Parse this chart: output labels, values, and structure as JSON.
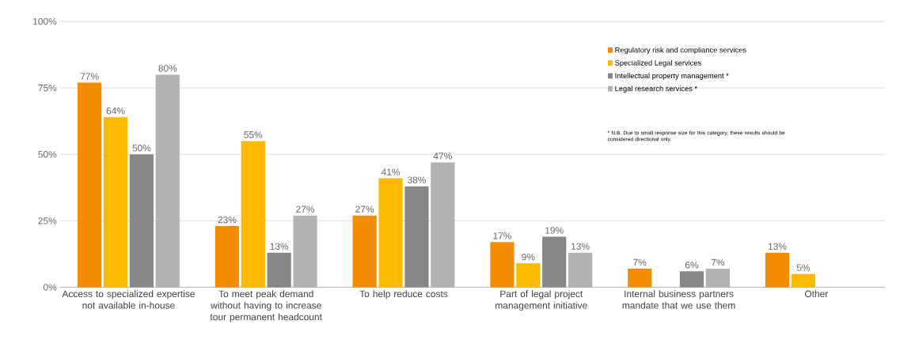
{
  "chart_data": {
    "type": "bar",
    "categories": [
      "Access to specialized expertise not available in-house",
      "To meet peak demand without having to increase tour permanent headcount",
      "To help reduce costs",
      "Part of legal project management initiative",
      "Internal business partners mandate that we use them",
      "Other"
    ],
    "series": [
      {
        "name": "Regulatory risk and compliance services",
        "color": "#f28c00",
        "values": [
          77,
          23,
          27,
          17,
          7,
          13
        ],
        "value_labels": [
          "77%",
          "23%",
          "27%",
          "17%",
          "7%",
          "13%"
        ]
      },
      {
        "name": "Specialized Legal services",
        "color": "#fbb900",
        "values": [
          64,
          55,
          41,
          9,
          null,
          5
        ],
        "value_labels": [
          "64%",
          "55%",
          "41%",
          "9%",
          null,
          "5%"
        ]
      },
      {
        "name": "Intellectual property management *",
        "color": "#878787",
        "values": [
          50,
          13,
          38,
          19,
          6,
          null
        ],
        "value_labels": [
          "50%",
          "13%",
          "38%",
          "19%",
          "6%",
          null
        ]
      },
      {
        "name": "Legal research services *",
        "color": "#b2b2b2",
        "values": [
          80,
          27,
          47,
          13,
          7,
          null
        ],
        "value_labels": [
          "80%",
          "27%",
          "47%",
          "13%",
          "7%",
          null
        ]
      }
    ],
    "ylim": [
      0,
      100
    ],
    "yticks": [
      {
        "value": 0,
        "label": "0%"
      },
      {
        "value": 25,
        "label": "25%"
      },
      {
        "value": 50,
        "label": "50%"
      },
      {
        "value": 75,
        "label": "75%"
      },
      {
        "value": 100,
        "label": "100%"
      }
    ],
    "grid": "y",
    "legend": "top right",
    "annotations": [
      "* N.B. Due to small response size for this category, these results should be considered directional only."
    ]
  }
}
